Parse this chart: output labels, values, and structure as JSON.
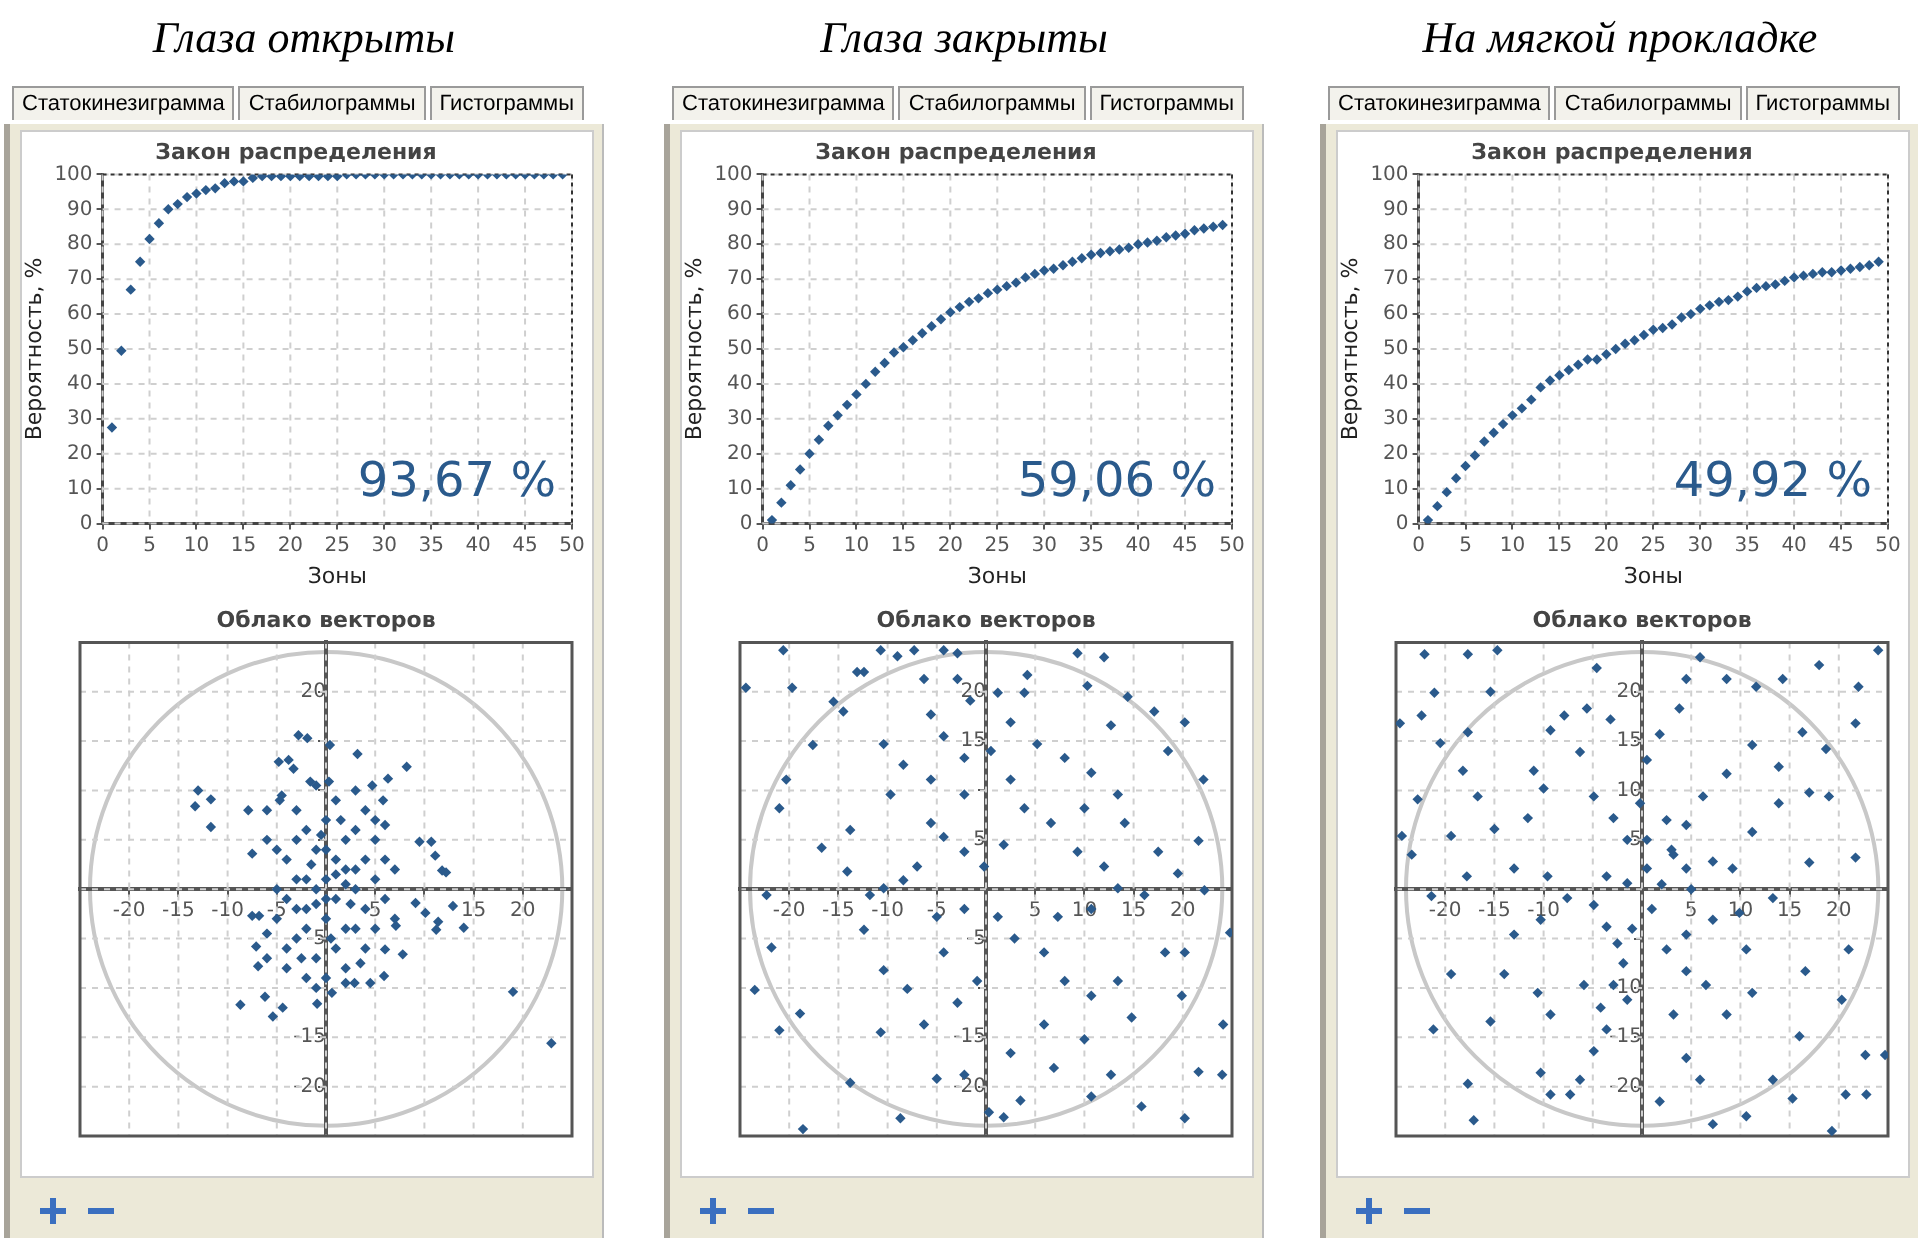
{
  "chart_data": [
    {
      "type": "scatter",
      "title": "Глаза открыты",
      "subtitle": "Закон распределения",
      "xlabel": "Зоны",
      "ylabel": "Вероятность, %",
      "annotations": [
        "93,67 %",
        "Статокинезиграмма",
        "Стабилограммы",
        "Гистограммы"
      ],
      "marker": "diamond",
      "grid": true,
      "xlim": [
        0,
        50
      ],
      "ylim": [
        0,
        100
      ],
      "xticks": [
        0,
        5,
        10,
        15,
        20,
        25,
        30,
        35,
        40,
        45,
        50
      ],
      "yticks": [
        0,
        10,
        20,
        30,
        40,
        50,
        60,
        70,
        80,
        90,
        100
      ],
      "x": [
        1,
        2,
        3,
        4,
        5,
        6,
        7,
        8,
        9,
        10,
        11,
        12,
        13,
        14,
        15,
        16,
        17,
        18,
        19,
        20,
        21,
        22,
        23,
        24,
        25,
        26,
        27,
        28,
        29,
        30,
        31,
        32,
        33,
        34,
        35,
        36,
        37,
        38,
        39,
        40,
        41,
        42,
        43,
        44,
        45,
        46,
        47,
        48,
        49
      ],
      "series": [
        {
          "color": "#2a5a8c",
          "values": [
            27.5,
            49.5,
            67,
            75,
            81.5,
            86,
            90,
            91.5,
            93.5,
            94.5,
            95.5,
            96,
            97.5,
            98,
            98,
            99,
            99.5,
            99.5,
            99.5,
            99.5,
            99.5,
            99.5,
            99.5,
            99.5,
            99.5,
            100,
            100,
            100,
            100,
            100,
            100,
            100,
            100,
            100,
            100,
            100,
            100,
            100,
            100,
            100,
            100,
            100,
            100,
            100,
            100,
            100,
            100,
            100,
            100
          ]
        }
      ]
    },
    {
      "type": "scatter",
      "title": "Глаза закрыты",
      "subtitle": "Закон распределения",
      "xlabel": "Зоны",
      "ylabel": "Вероятность, %",
      "annotations": [
        "59,06 %",
        "Статокинезиграмма",
        "Стабилограммы",
        "Гистограммы"
      ],
      "marker": "diamond",
      "grid": true,
      "xlim": [
        0,
        50
      ],
      "ylim": [
        0,
        100
      ],
      "xticks": [
        0,
        5,
        10,
        15,
        20,
        25,
        30,
        35,
        40,
        45,
        50
      ],
      "yticks": [
        0,
        10,
        20,
        30,
        40,
        50,
        60,
        70,
        80,
        90,
        100
      ],
      "x": [
        1,
        2,
        3,
        4,
        5,
        6,
        7,
        8,
        9,
        10,
        11,
        12,
        13,
        14,
        15,
        16,
        17,
        18,
        19,
        20,
        21,
        22,
        23,
        24,
        25,
        26,
        27,
        28,
        29,
        30,
        31,
        32,
        33,
        34,
        35,
        36,
        37,
        38,
        39,
        40,
        41,
        42,
        43,
        44,
        45,
        46,
        47,
        48,
        49
      ],
      "series": [
        {
          "color": "#2a5a8c",
          "values": [
            1,
            6,
            11,
            15.5,
            20,
            24,
            28,
            31,
            34,
            37,
            40,
            43.5,
            46,
            49,
            50.5,
            52.5,
            54.5,
            56.5,
            58.5,
            60.5,
            62,
            63.5,
            64.5,
            66,
            67,
            68,
            69,
            70.5,
            71.5,
            72.5,
            73,
            74,
            75,
            76,
            77,
            77.5,
            78,
            78.5,
            79,
            80,
            80.5,
            81,
            82,
            82.5,
            83,
            84,
            84.5,
            85,
            85.5
          ]
        }
      ]
    },
    {
      "type": "scatter",
      "title": "На мягкой прокладке",
      "subtitle": "Закон распределения",
      "xlabel": "Зоны",
      "ylabel": "Вероятность, %",
      "annotations": [
        "49,92 %",
        "Статокинезиграмма",
        "Стабилограммы",
        "Гистограммы"
      ],
      "marker": "diamond",
      "grid": true,
      "xlim": [
        0,
        50
      ],
      "ylim": [
        0,
        100
      ],
      "xticks": [
        0,
        5,
        10,
        15,
        20,
        25,
        30,
        35,
        40,
        45,
        50
      ],
      "yticks": [
        0,
        10,
        20,
        30,
        40,
        50,
        60,
        70,
        80,
        90,
        100
      ],
      "x": [
        1,
        2,
        3,
        4,
        5,
        6,
        7,
        8,
        9,
        10,
        11,
        12,
        13,
        14,
        15,
        16,
        17,
        18,
        19,
        20,
        21,
        22,
        23,
        24,
        25,
        26,
        27,
        28,
        29,
        30,
        31,
        32,
        33,
        34,
        35,
        36,
        37,
        38,
        39,
        40,
        41,
        42,
        43,
        44,
        45,
        46,
        47,
        48,
        49
      ],
      "series": [
        {
          "color": "#2a5a8c",
          "values": [
            1,
            5,
            9,
            13,
            16.5,
            19.5,
            23.5,
            26,
            28.5,
            31,
            33,
            35.5,
            39,
            41,
            42.5,
            44,
            45.5,
            47,
            47,
            48.5,
            50,
            51.5,
            52.5,
            54,
            55.5,
            56,
            57,
            59,
            60,
            61.5,
            62.5,
            63.5,
            64,
            65,
            66.5,
            67.5,
            68,
            68.5,
            69.5,
            70.5,
            71,
            71.5,
            72,
            72,
            72.5,
            73,
            73.5,
            74,
            75
          ]
        }
      ]
    },
    {
      "type": "scatter",
      "title": "Облако векторов",
      "marker": "diamond",
      "grid": true,
      "xlim": [
        -25,
        25
      ],
      "ylim": [
        -25,
        25
      ],
      "xticks": [
        -20,
        -15,
        -10,
        -5,
        {
          "value": 0,
          "label": null
        },
        5,
        {
          "value": 10,
          "label": null
        },
        15,
        20
      ],
      "yticks": [
        -20,
        -15,
        {
          "value": -10,
          "label": null
        },
        -5,
        {
          "value": 0,
          "label": null
        },
        {
          "value": 5,
          "label": null
        },
        {
          "value": 10,
          "label": null
        },
        {
          "value": 15,
          "label": null
        },
        20
      ],
      "series": [
        {
          "color": "#2a5a8c",
          "x": [
            -13,
            -11.7,
            -13.3,
            -11.7,
            -7.9,
            -6,
            -7.5,
            -8.7,
            -5.4,
            -6.2,
            -4.4,
            -0.9,
            0.6,
            19,
            22.9,
            -2.8,
            -1.9,
            0.4,
            3.2,
            6.3,
            8.2,
            9.5,
            10.7,
            11.1,
            11.8,
            12.2,
            9.1,
            10.1,
            11.4,
            12.9,
            14,
            11.2,
            6,
            7.1,
            7.8,
            5.9,
            2.9,
            -7.1,
            -6.9,
            -6.8,
            -7.5,
            -4.8,
            -3.8,
            -3.3,
            -4.7,
            -1.6,
            0.3,
            5.8,
            4.7,
            -1,
            0,
            1,
            2,
            -2,
            3,
            -3,
            0,
            1,
            -1,
            2,
            -2,
            0,
            3,
            -3,
            4,
            -4,
            1,
            -1,
            2,
            -2,
            4,
            -4,
            5,
            -5,
            3,
            -3,
            1,
            -1,
            4,
            5,
            6,
            6,
            5,
            4,
            2,
            -2,
            -4,
            -5,
            -5,
            -3,
            0,
            2,
            -1,
            1,
            0,
            -2,
            3,
            -3,
            0.5,
            -0.5,
            1.5,
            -1.5,
            2.5,
            -2.5,
            3.5,
            0,
            -4,
            5,
            6,
            7,
            7,
            -6,
            -6,
            -4.5,
            3,
            2,
            -1,
            4.5,
            -6
          ],
          "values": [
            10,
            9.1,
            8.4,
            6.3,
            8,
            8,
            3.6,
            -11.7,
            -12.9,
            -10.9,
            -12,
            -11.6,
            -10.5,
            -10.4,
            -15.6,
            15.6,
            15.3,
            14.6,
            13.7,
            11.2,
            12.4,
            4.8,
            4.8,
            3.4,
            1.9,
            1.7,
            -1.4,
            -2.4,
            -3.3,
            -1.7,
            -3.9,
            -4.1,
            -6.1,
            -3.7,
            -6.6,
            -8.8,
            -9.5,
            -5.8,
            -7.8,
            -2.7,
            -2.7,
            12.9,
            13.1,
            12.2,
            9,
            10.9,
            10.9,
            9,
            10.5,
            0,
            1,
            -1,
            2,
            -2,
            0,
            1,
            -3,
            3,
            4,
            5,
            6,
            7,
            -4,
            -5,
            3,
            3,
            -6,
            -7,
            -8,
            -9,
            -2,
            -1,
            1,
            0,
            6,
            8,
            9,
            10.5,
            8,
            5,
            3,
            -1,
            -4,
            -6,
            -4,
            -4,
            -6,
            -3,
            4,
            5,
            4,
            0.5,
            -1.5,
            1.5,
            -1,
            1,
            2,
            -2,
            -5,
            5.5,
            7,
            2.5,
            -1.5,
            -7,
            -7.5,
            -9,
            -8,
            7,
            6.5,
            2,
            -3,
            -4.5,
            5,
            9.5,
            10,
            -9.5,
            -10,
            -9.5,
            -7
          ]
        }
      ]
    },
    {
      "type": "scatter",
      "title": "Облако векторов",
      "marker": "diamond",
      "grid": true,
      "xlim": [
        -25,
        25
      ],
      "ylim": [
        -25,
        25
      ],
      "xticks": [
        -20,
        -15,
        -10,
        -5,
        {
          "value": 0,
          "label": null
        },
        5,
        10,
        15,
        20
      ],
      "yticks": [
        -20,
        -15,
        {
          "value": -10,
          "label": null
        },
        -5,
        {
          "value": 0,
          "label": null
        },
        5,
        {
          "value": 10,
          "label": null
        },
        15,
        20
      ],
      "series": [
        {
          "color": "#2a5a8c",
          "x": [
            -24.4,
            -20.6,
            -19.7,
            -15.5,
            -14.5,
            -13.1,
            -12.4,
            -10.7,
            -9,
            -7.3,
            -6.3,
            -4.3,
            -2.9,
            -1.6,
            1.2,
            3.9,
            4.2,
            9.3,
            12,
            10.3,
            14.4,
            17.1,
            12.7,
            20.2,
            18.5,
            22.1,
            21.6,
            19.5,
            22.2,
            24.8,
            20.2,
            18.2,
            19.9,
            24.1,
            24,
            21.6,
            20.2,
            15.8,
            12.7,
            10.7,
            6.9,
            3.5,
            1.8,
            0.3,
            -2.2,
            -5,
            -8.7,
            -13.8,
            -18.6,
            -21,
            -18.9,
            -23.5,
            -21.8,
            -22.3,
            -21,
            -20.3,
            -17.6,
            -16.7,
            -14.1,
            -11.8,
            -12.4,
            -10.4,
            -8,
            -10.7,
            -6.3,
            -2.9,
            -0.9,
            -4.3,
            -5,
            -2.2,
            1.2,
            2.9,
            5.9,
            8,
            10.7,
            13.4,
            14.8,
            10,
            5.9,
            2.5,
            7.3,
            10.7,
            13.4,
            16.1,
            12,
            9.3,
            6.6,
            3.9,
            1.8,
            -0.2,
            -2.2,
            -4.3,
            -5.6,
            -7,
            -8.4,
            -10.4,
            -13.8,
            -9.7,
            -8.4,
            -5.6,
            -10.4,
            -4.3,
            -2.2,
            0.5,
            2.5,
            5.2,
            8,
            10.7,
            13.4,
            14.1,
            17.5,
            10,
            -2.2,
            -5.6,
            2.5,
            -2.9
          ],
          "values": [
            20.4,
            24.2,
            20.4,
            19,
            18,
            22,
            22,
            24.2,
            23.6,
            24.2,
            21.3,
            24.2,
            23.9,
            19.1,
            19.9,
            19.9,
            21.7,
            23.9,
            23.5,
            20.6,
            19.5,
            18,
            16.6,
            16.9,
            14,
            11.1,
            4.9,
            1.6,
            -0.1,
            -4.4,
            -6.4,
            -6.4,
            -10.8,
            -13.7,
            -18.8,
            -18.5,
            -23.2,
            -22,
            -18.8,
            -21,
            -18.1,
            -21.4,
            -23.1,
            -22.6,
            -18.8,
            -19.2,
            -23.2,
            -19.6,
            -24.3,
            -14.3,
            -12.6,
            -10.2,
            -5.9,
            -0.6,
            8.2,
            11.1,
            14.6,
            4.2,
            1.8,
            -0.6,
            -4.1,
            -8.2,
            -10.1,
            -14.5,
            -13.7,
            -11.5,
            -9.3,
            -6.4,
            -2.8,
            -2,
            -2.8,
            -5,
            -6.4,
            -9.3,
            -10.8,
            -9.3,
            -13,
            -15.2,
            -13.7,
            -16.6,
            -2.8,
            -2,
            0.1,
            -0.6,
            2.3,
            3.8,
            6.7,
            8.2,
            4.5,
            2.3,
            3.8,
            5.3,
            6.7,
            2.3,
            0.9,
            0.1,
            6,
            9.6,
            12.6,
            11.1,
            14.7,
            15.5,
            13.3,
            14,
            11.1,
            14.7,
            13.3,
            11.8,
            9.6,
            6.7,
            3.8,
            8.2,
            9.6,
            17.7,
            16.9,
            21.3
          ]
        }
      ]
    },
    {
      "type": "scatter",
      "title": "Облако векторов",
      "marker": "diamond",
      "grid": true,
      "xlim": [
        -25,
        25
      ],
      "ylim": [
        -25,
        25
      ],
      "xticks": [
        -20,
        -15,
        -10,
        {
          "value": -5,
          "label": null
        },
        {
          "value": 0,
          "label": null
        },
        5,
        10,
        15,
        20
      ],
      "yticks": [
        -20,
        -15,
        -10,
        {
          "value": -5,
          "label": null
        },
        {
          "value": 0,
          "label": null
        },
        5,
        10,
        15,
        20
      ],
      "series": [
        {
          "color": "#2a5a8c",
          "x": [
            -22.1,
            -17.7,
            -14.7,
            -21.1,
            -22.4,
            -24.6,
            -15.4,
            -17.7,
            -20.5,
            -18.2,
            -22.8,
            -24.4,
            -23.4,
            -19.4,
            -16.7,
            -15,
            -13,
            -17.8,
            -21.4,
            -19.4,
            -21.2,
            -15.4,
            -17.7,
            -17.1,
            -14,
            -13,
            -10.3,
            -10.6,
            -9.3,
            -10.3,
            -9.3,
            -7.3,
            -6.3,
            -4.9,
            -3.6,
            -4.2,
            -5.9,
            -2.9,
            -1.5,
            -1.9,
            -3.6,
            -4.9,
            -7.6,
            -9.6,
            -11.6,
            -10,
            -11,
            -9.3,
            -7.9,
            -5.6,
            -4.6,
            -3.2,
            -6.3,
            -4.9,
            -2.9,
            -1.5,
            -3.6,
            -1.5,
            0.5,
            0.5,
            -0.2,
            0.5,
            1.8,
            3.8,
            4.5,
            5.9,
            8.6,
            11.6,
            14.3,
            18,
            22,
            24,
            21.7,
            18.7,
            16.3,
            13.9,
            11.2,
            8.6,
            6.2,
            4.5,
            3.2,
            4.5,
            7.2,
            9.2,
            11.2,
            13.9,
            17,
            19,
            21.7,
            17,
            13.3,
            9.9,
            7.2,
            4.5,
            2.5,
            4.5,
            6.5,
            3.2,
            4.5,
            1.8,
            7.2,
            10.6,
            13.3,
            15.3,
            19.3,
            20.7,
            22.8,
            22.7,
            24.7,
            20.3,
            16.6,
            10.6,
            11.2,
            8.6,
            5.9,
            16,
            21,
            2,
            3,
            1,
            -1,
            2.5,
            5,
            -2.5
          ],
          "values": [
            23.8,
            23.8,
            24.2,
            19.9,
            17.6,
            16.8,
            20,
            15.9,
            14.8,
            12,
            9.1,
            5.4,
            3.5,
            5.4,
            9.4,
            6.1,
            2.1,
            1.3,
            -0.7,
            -8.6,
            -14.2,
            -13.4,
            -19.7,
            -23.4,
            -8.6,
            -4.6,
            -3.1,
            -10.5,
            -12.7,
            -18.6,
            -20.8,
            -20.8,
            -19.3,
            -16.4,
            -14.2,
            -12,
            -9.7,
            -9.7,
            -11.2,
            -7.5,
            -3.8,
            -1.6,
            -0.9,
            1.3,
            7.2,
            10.2,
            12,
            16.1,
            17.6,
            18.3,
            22.4,
            17.2,
            13.9,
            9.4,
            7.2,
            5,
            1.3,
            0.6,
            2.1,
            5,
            8.7,
            13.1,
            15.7,
            18.3,
            21.3,
            23.5,
            21.3,
            20.5,
            21.3,
            22.7,
            20.5,
            24.2,
            16.8,
            14.2,
            15.9,
            12.4,
            14.6,
            11.7,
            9.4,
            6.5,
            3.5,
            2.1,
            2.8,
            2.1,
            5.8,
            8.7,
            9.8,
            9.4,
            3.2,
            2.7,
            -0.9,
            -2.4,
            -3.1,
            -4.6,
            -6.1,
            -8.3,
            -9.7,
            -12.7,
            -17.1,
            -21.5,
            -23.8,
            -23,
            -19.3,
            -21.2,
            -24.5,
            -20.8,
            -20.8,
            -16.8,
            -16.8,
            -11.2,
            -8.3,
            -6.1,
            -10.5,
            -12.7,
            -19.3,
            -14.9,
            -6.1,
            0.5,
            4,
            -2,
            -4,
            7,
            0,
            -5.5
          ]
        }
      ]
    }
  ]
}
